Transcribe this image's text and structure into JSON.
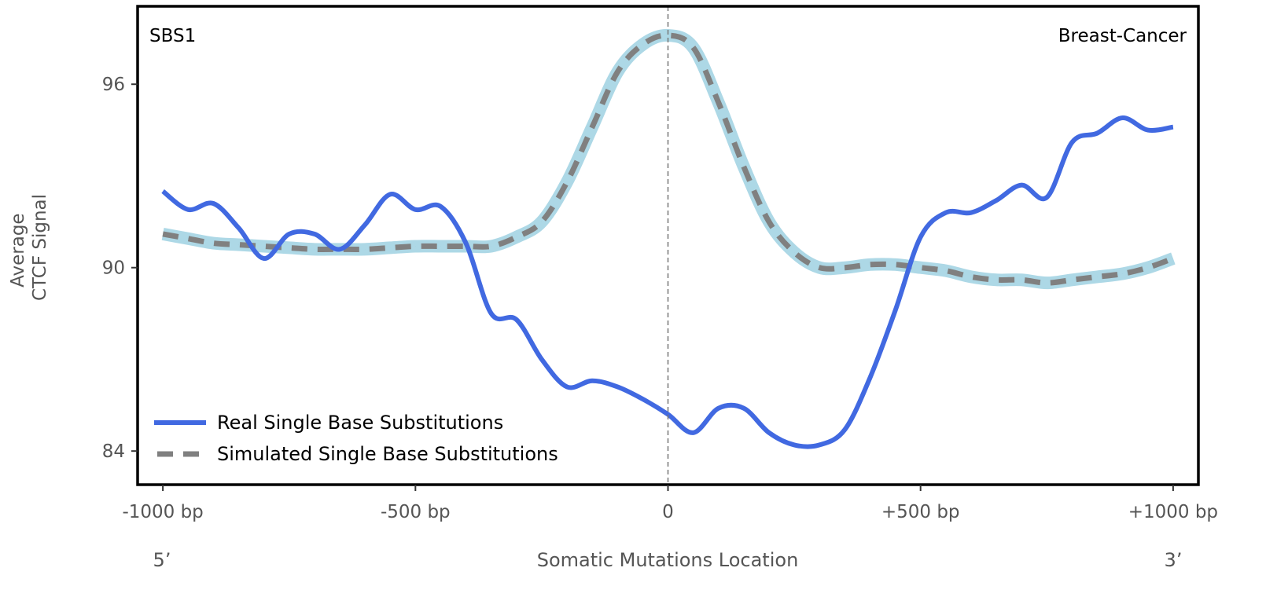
{
  "chart_data": {
    "type": "line",
    "ylabel_lines": [
      "Average",
      "CTCF Signal"
    ],
    "xlabel": "Somatic Mutations Location",
    "annotation_left": "SBS1",
    "annotation_right": "Breast-Cancer",
    "end_label_left": "5’",
    "end_label_right": "3’",
    "xlim": [
      -1050,
      1050
    ],
    "ylim": [
      82.9,
      98.55
    ],
    "x_ticks": [
      -1000,
      -500,
      0,
      500,
      1000
    ],
    "x_tick_labels": [
      "-1000 bp",
      "-500 bp",
      "0",
      "+500 bp",
      "+1000 bp"
    ],
    "y_ticks": [
      84,
      90,
      96
    ],
    "y_tick_labels": [
      "84",
      "90",
      "96"
    ],
    "vertical_line_x": 0,
    "legend_position": "lower-left",
    "grid": false,
    "x": [
      -1000,
      -950,
      -900,
      -850,
      -800,
      -750,
      -700,
      -650,
      -600,
      -550,
      -500,
      -450,
      -400,
      -350,
      -300,
      -250,
      -200,
      -150,
      -100,
      -50,
      0,
      50,
      100,
      150,
      200,
      250,
      300,
      350,
      400,
      450,
      500,
      550,
      600,
      650,
      700,
      750,
      800,
      850,
      900,
      950,
      1000
    ],
    "series": [
      {
        "name": "Real Single Base Substitutions",
        "color": "#4169E1",
        "style": "solid",
        "values": [
          92.5,
          91.9,
          92.1,
          91.3,
          90.3,
          91.1,
          91.1,
          90.6,
          91.4,
          92.4,
          91.9,
          92.0,
          90.8,
          88.5,
          88.3,
          87.0,
          86.1,
          86.3,
          86.1,
          85.7,
          85.2,
          84.6,
          85.4,
          85.4,
          84.6,
          84.2,
          84.2,
          84.7,
          86.4,
          88.6,
          91.0,
          91.8,
          91.8,
          92.2,
          92.7,
          92.3,
          94.1,
          94.4,
          94.9,
          94.5,
          94.6
        ]
      },
      {
        "name": "Simulated Single Base Substitutions",
        "color": "#808080",
        "band_color": "#ADD8E6",
        "style": "dashed",
        "values": [
          91.1,
          90.95,
          90.8,
          90.75,
          90.7,
          90.65,
          90.6,
          90.6,
          90.6,
          90.65,
          90.7,
          90.7,
          90.7,
          90.7,
          91.0,
          91.5,
          92.8,
          94.6,
          96.4,
          97.3,
          97.6,
          97.2,
          95.4,
          93.3,
          91.5,
          90.5,
          90.0,
          90.0,
          90.1,
          90.1,
          90.0,
          89.9,
          89.7,
          89.6,
          89.6,
          89.5,
          89.6,
          89.7,
          89.8,
          90.0,
          90.3
        ]
      }
    ]
  }
}
